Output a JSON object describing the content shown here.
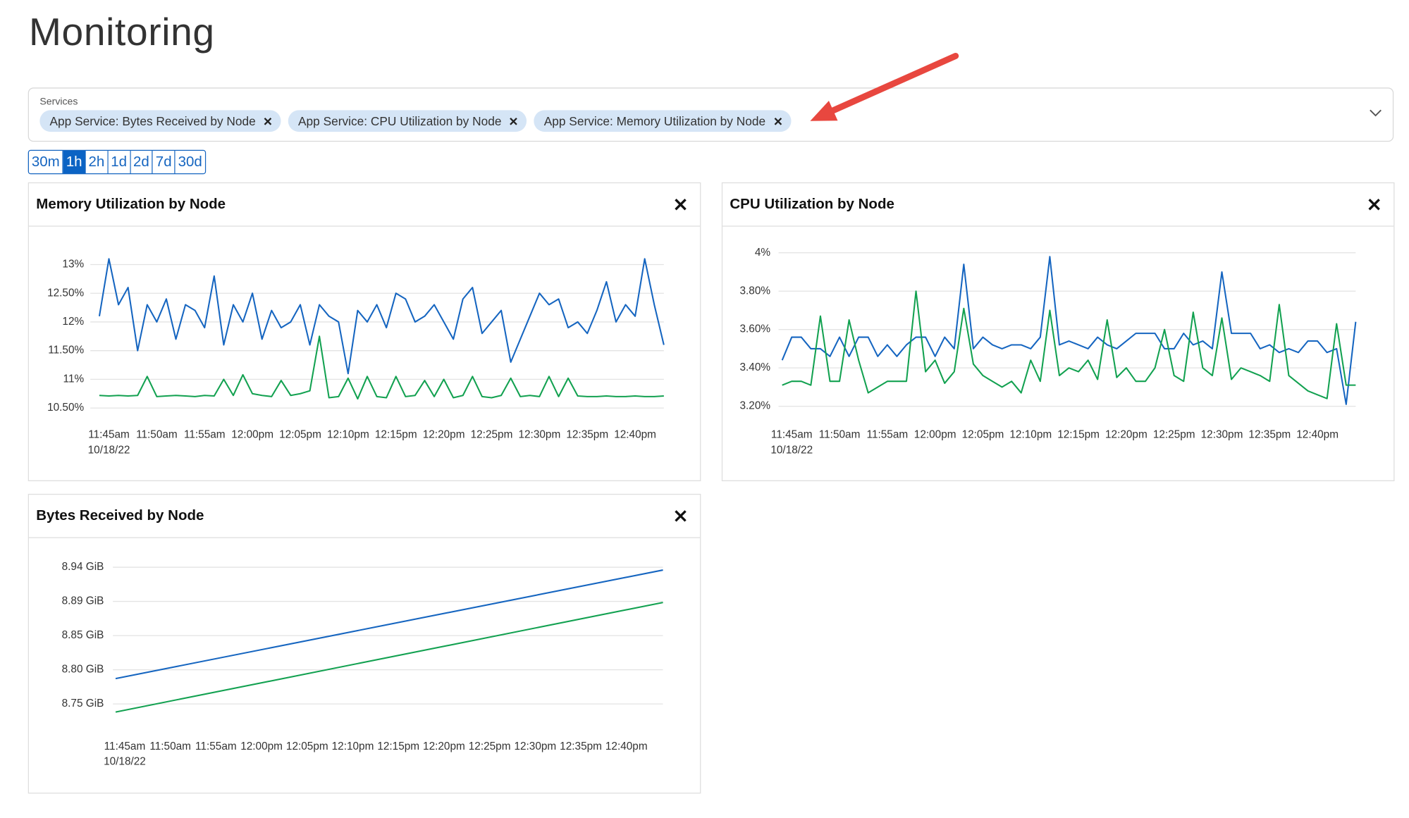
{
  "header": {
    "title": "Monitoring"
  },
  "services": {
    "label": "Services",
    "chips": [
      "App Service: Bytes Received by Node",
      "App Service: CPU Utilization by Node",
      "App Service: Memory Utilization by Node"
    ]
  },
  "time_ranges": {
    "options": [
      "30m",
      "1h",
      "2h",
      "1d",
      "2d",
      "7d",
      "30d"
    ],
    "selected_index": 1
  },
  "chart_data": [
    {
      "type": "line",
      "title": "Memory Utilization by Node",
      "x": [
        "11:44am",
        "11:45am",
        "11:46am",
        "11:47am",
        "11:48am",
        "11:49am",
        "11:50am",
        "11:51am",
        "11:52am",
        "11:53am",
        "11:54am",
        "11:55am",
        "11:56am",
        "11:57am",
        "11:58am",
        "11:59am",
        "12:00pm",
        "12:01pm",
        "12:02pm",
        "12:03pm",
        "12:04pm",
        "12:05pm",
        "12:06pm",
        "12:07pm",
        "12:08pm",
        "12:09pm",
        "12:10pm",
        "12:11pm",
        "12:12pm",
        "12:13pm",
        "12:14pm",
        "12:15pm",
        "12:16pm",
        "12:17pm",
        "12:18pm",
        "12:19pm",
        "12:20pm",
        "12:21pm",
        "12:22pm",
        "12:23pm",
        "12:24pm",
        "12:25pm",
        "12:26pm",
        "12:27pm",
        "12:28pm",
        "12:29pm",
        "12:30pm",
        "12:31pm",
        "12:32pm",
        "12:33pm",
        "12:34pm",
        "12:35pm",
        "12:36pm",
        "12:37pm",
        "12:38pm",
        "12:39pm",
        "12:40pm",
        "12:41pm",
        "12:42pm",
        "12:43pm"
      ],
      "xlim": [
        "11:44am",
        "12:43pm"
      ],
      "xticks": [
        "11:45am",
        "11:50am",
        "11:55am",
        "12:00pm",
        "12:05pm",
        "12:10pm",
        "12:15pm",
        "12:20pm",
        "12:25pm",
        "12:30pm",
        "12:35pm",
        "12:40pm"
      ],
      "date_label": "10/18/22",
      "ylim": [
        10.35,
        13.2
      ],
      "yticks": [
        {
          "value": 10.5,
          "label": "10.50%"
        },
        {
          "value": 11,
          "label": "11%"
        },
        {
          "value": 11.5,
          "label": "11.50%"
        },
        {
          "value": 12,
          "label": "12%"
        },
        {
          "value": 12.5,
          "label": "12.50%"
        },
        {
          "value": 13,
          "label": "13%"
        }
      ],
      "grid": true,
      "series": [
        {
          "color": "#1565c0",
          "values": [
            12.1,
            13.1,
            12.3,
            12.6,
            11.5,
            12.3,
            12.0,
            12.4,
            11.7,
            12.3,
            12.2,
            11.9,
            12.8,
            11.6,
            12.3,
            12.0,
            12.5,
            11.7,
            12.2,
            11.9,
            12.0,
            12.3,
            11.6,
            12.3,
            12.1,
            12.0,
            11.1,
            12.2,
            12.0,
            12.3,
            11.9,
            12.5,
            12.4,
            12.0,
            12.1,
            12.3,
            12.0,
            11.7,
            12.4,
            12.6,
            11.8,
            12.0,
            12.2,
            11.3,
            11.7,
            12.1,
            12.5,
            12.3,
            12.4,
            11.9,
            12.0,
            11.8,
            12.2,
            12.7,
            12.0,
            12.3,
            12.1,
            13.1,
            12.3,
            11.6
          ]
        },
        {
          "color": "#12a150",
          "values": [
            10.72,
            10.71,
            10.72,
            10.71,
            10.72,
            11.05,
            10.7,
            10.71,
            10.72,
            10.71,
            10.7,
            10.72,
            10.71,
            11.0,
            10.72,
            11.08,
            10.75,
            10.72,
            10.7,
            10.98,
            10.72,
            10.75,
            10.8,
            11.75,
            10.68,
            10.7,
            11.02,
            10.66,
            11.05,
            10.7,
            10.68,
            11.05,
            10.7,
            10.72,
            10.98,
            10.7,
            11.0,
            10.68,
            10.72,
            11.05,
            10.7,
            10.68,
            10.72,
            11.02,
            10.7,
            10.72,
            10.7,
            11.05,
            10.7,
            11.02,
            10.71,
            10.7,
            10.7,
            10.71,
            10.7,
            10.7,
            10.71,
            10.7,
            10.7,
            10.71
          ]
        }
      ]
    },
    {
      "type": "line",
      "title": "CPU Utilization by Node",
      "x": [
        "11:44am",
        "11:45am",
        "11:46am",
        "11:47am",
        "11:48am",
        "11:49am",
        "11:50am",
        "11:51am",
        "11:52am",
        "11:53am",
        "11:54am",
        "11:55am",
        "11:56am",
        "11:57am",
        "11:58am",
        "11:59am",
        "12:00pm",
        "12:01pm",
        "12:02pm",
        "12:03pm",
        "12:04pm",
        "12:05pm",
        "12:06pm",
        "12:07pm",
        "12:08pm",
        "12:09pm",
        "12:10pm",
        "12:11pm",
        "12:12pm",
        "12:13pm",
        "12:14pm",
        "12:15pm",
        "12:16pm",
        "12:17pm",
        "12:18pm",
        "12:19pm",
        "12:20pm",
        "12:21pm",
        "12:22pm",
        "12:23pm",
        "12:24pm",
        "12:25pm",
        "12:26pm",
        "12:27pm",
        "12:28pm",
        "12:29pm",
        "12:30pm",
        "12:31pm",
        "12:32pm",
        "12:33pm",
        "12:34pm",
        "12:35pm",
        "12:36pm",
        "12:37pm",
        "12:38pm",
        "12:39pm",
        "12:40pm",
        "12:41pm",
        "12:42pm",
        "12:43pm",
        "12:44pm"
      ],
      "xlim": [
        "11:44am",
        "12:44pm"
      ],
      "xticks": [
        "11:45am",
        "11:50am",
        "11:55am",
        "12:00pm",
        "12:05pm",
        "12:10pm",
        "12:15pm",
        "12:20pm",
        "12:25pm",
        "12:30pm",
        "12:35pm",
        "12:40pm"
      ],
      "date_label": "10/18/22",
      "ylim": [
        3.15,
        4.03
      ],
      "yticks": [
        {
          "value": 3.2,
          "label": "3.20%"
        },
        {
          "value": 3.4,
          "label": "3.40%"
        },
        {
          "value": 3.6,
          "label": "3.60%"
        },
        {
          "value": 3.8,
          "label": "3.80%"
        },
        {
          "value": 4,
          "label": "4%"
        }
      ],
      "grid": true,
      "series": [
        {
          "color": "#1565c0",
          "values": [
            3.44,
            3.56,
            3.56,
            3.5,
            3.5,
            3.46,
            3.56,
            3.46,
            3.56,
            3.56,
            3.46,
            3.52,
            3.46,
            3.52,
            3.56,
            3.56,
            3.46,
            3.56,
            3.5,
            3.94,
            3.5,
            3.56,
            3.52,
            3.5,
            3.52,
            3.52,
            3.5,
            3.56,
            3.98,
            3.52,
            3.54,
            3.52,
            3.5,
            3.56,
            3.52,
            3.5,
            3.54,
            3.58,
            3.58,
            3.58,
            3.5,
            3.5,
            3.58,
            3.52,
            3.54,
            3.5,
            3.9,
            3.58,
            3.58,
            3.58,
            3.5,
            3.52,
            3.48,
            3.5,
            3.48,
            3.54,
            3.54,
            3.48,
            3.5,
            3.21,
            3.64
          ]
        },
        {
          "color": "#12a150",
          "values": [
            3.31,
            3.33,
            3.33,
            3.31,
            3.67,
            3.33,
            3.33,
            3.65,
            3.44,
            3.27,
            3.3,
            3.33,
            3.33,
            3.33,
            3.8,
            3.38,
            3.44,
            3.32,
            3.38,
            3.71,
            3.42,
            3.36,
            3.33,
            3.3,
            3.33,
            3.27,
            3.44,
            3.33,
            3.7,
            3.36,
            3.4,
            3.38,
            3.44,
            3.34,
            3.65,
            3.35,
            3.4,
            3.33,
            3.33,
            3.4,
            3.6,
            3.36,
            3.33,
            3.69,
            3.4,
            3.36,
            3.66,
            3.34,
            3.4,
            3.38,
            3.36,
            3.33,
            3.73,
            3.36,
            3.32,
            3.28,
            3.26,
            3.24,
            3.63,
            3.31,
            3.31
          ]
        }
      ]
    },
    {
      "type": "line",
      "title": "Bytes Received by Node",
      "x": [
        "11:44am",
        "12:44pm"
      ],
      "xlim": [
        "11:44am",
        "12:44pm"
      ],
      "xticks": [
        "11:45am",
        "11:50am",
        "11:55am",
        "12:00pm",
        "12:05pm",
        "12:10pm",
        "12:15pm",
        "12:20pm",
        "12:25pm",
        "12:30pm",
        "12:35pm",
        "12:40pm"
      ],
      "date_label": "10/18/22",
      "ylim": [
        8.723,
        8.96
      ],
      "yticks": [
        {
          "value": 8.749,
          "label": "8.75 GiB"
        },
        {
          "value": 8.7975,
          "label": "8.80 GiB"
        },
        {
          "value": 8.846,
          "label": "8.85 GiB"
        },
        {
          "value": 8.8945,
          "label": "8.89 GiB"
        },
        {
          "value": 8.943,
          "label": "8.94 GiB"
        }
      ],
      "grid": true,
      "series": [
        {
          "color": "#1565c0",
          "values": [
            8.785,
            8.939
          ]
        },
        {
          "color": "#12a150",
          "values": [
            8.7375,
            8.893
          ]
        }
      ]
    }
  ]
}
